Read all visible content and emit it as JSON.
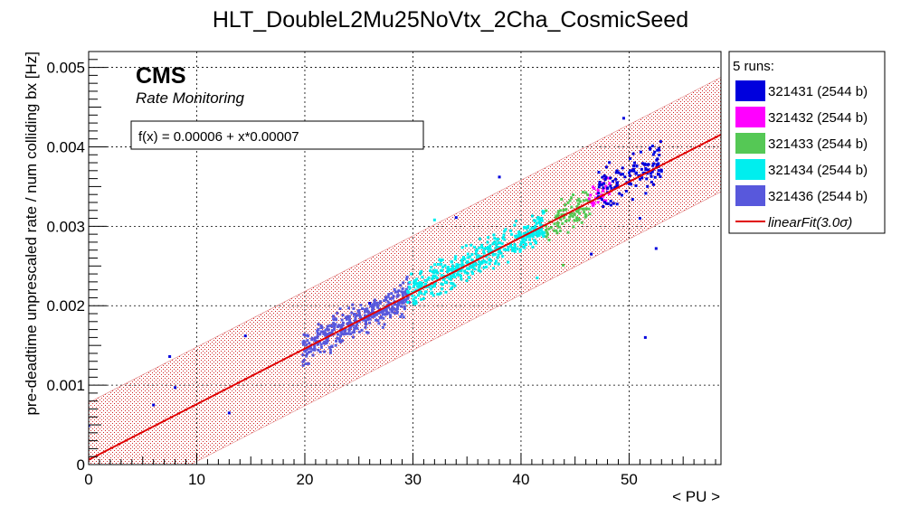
{
  "chart_data": {
    "type": "scatter",
    "title": "HLT_DoubleL2Mu25NoVtx_2Cha_CosmicSeed",
    "xlabel": "< PU >",
    "ylabel": "pre-deadtime unprescaled rate / num colliding bx [Hz]",
    "xlim": [
      0,
      58.5
    ],
    "ylim": [
      0,
      0.0052
    ],
    "x_ticks": [
      "0",
      "10",
      "20",
      "30",
      "40",
      "50"
    ],
    "x_tick_values": [
      0,
      10,
      20,
      30,
      40,
      50
    ],
    "y_ticks": [
      "0",
      "0.001",
      "0.002",
      "0.003",
      "0.004",
      "0.005"
    ],
    "y_tick_values": [
      0,
      0.001,
      0.002,
      0.003,
      0.004,
      0.005
    ],
    "grid": true,
    "watermark": {
      "title": "CMS",
      "subtitle": "Rate Monitoring"
    },
    "fit": {
      "label": "f(x) = 0.00006 + x*0.00007",
      "intercept": 6e-05,
      "slope": 7e-05,
      "band_halfwidth": 0.00072,
      "color": "#e00000"
    },
    "legend": {
      "header": "5 runs:",
      "fit_entry": "linearFit(3.0σ)",
      "position": "right"
    },
    "series": [
      {
        "name": "321431 (2544 b)",
        "color": "#0000dd",
        "x_range": [
          47,
          53
        ],
        "center": [
          49.5,
          0.0037
        ],
        "spread": 0.00028,
        "count": 130,
        "outliers": [
          [
            0,
            0.00049
          ],
          [
            6,
            0.00075
          ],
          [
            7.5,
            0.00136
          ],
          [
            8,
            0.00097
          ],
          [
            13,
            0.00065
          ],
          [
            14.5,
            0.00162
          ],
          [
            26,
            0.00203
          ],
          [
            38,
            0.00362
          ],
          [
            34,
            0.00311
          ],
          [
            51.5,
            0.0016
          ],
          [
            52.5,
            0.00272
          ],
          [
            49.5,
            0.00436
          ],
          [
            51,
            0.0031
          ],
          [
            46.5,
            0.00265
          ]
        ]
      },
      {
        "name": "321432 (2544 b)",
        "color": "#ff00ff",
        "x_range": [
          46.3,
          48.2
        ],
        "center": [
          47.2,
          0.00345
        ],
        "spread": 0.00017,
        "count": 30,
        "outliers": []
      },
      {
        "name": "321433 (2544 b)",
        "color": "#55c855",
        "x_range": [
          42.3,
          46.5
        ],
        "center": [
          44.4,
          0.00315
        ],
        "spread": 0.00018,
        "count": 90,
        "outliers": [
          [
            43.9,
            0.00251
          ]
        ]
      },
      {
        "name": "321434 (2544 b)",
        "color": "#00eeee",
        "x_range": [
          29.5,
          42.2
        ],
        "center": [
          36,
          0.00259
        ],
        "spread": 0.00018,
        "count": 420,
        "outliers": [
          [
            32,
            0.00308
          ],
          [
            41.5,
            0.00235
          ]
        ]
      },
      {
        "name": "321436 (2544 b)",
        "color": "#5858dc",
        "x_range": [
          19.8,
          29.7
        ],
        "center": [
          24.5,
          0.0018
        ],
        "spread": 0.00018,
        "count": 380,
        "outliers": []
      }
    ]
  }
}
